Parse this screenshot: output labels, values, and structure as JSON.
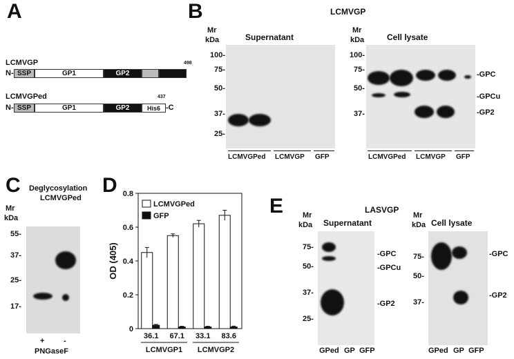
{
  "panels": {
    "a": {
      "letter": "A",
      "construct1": {
        "name": "LCMVGP",
        "n": "N-",
        "ssp": "SSP",
        "gp1": "GP1",
        "gp2": "GP2",
        "end": "498"
      },
      "construct2": {
        "name": "LCMVGPed",
        "n": "N-",
        "ssp": "SSP",
        "gp1": "GP1",
        "gp2": "GP2",
        "his": "His6",
        "c": "-C",
        "end": "437"
      }
    },
    "b": {
      "letter": "B",
      "title": "LCMVGP",
      "mr": "Mr",
      "kda": "kDa",
      "sup_title": "Supernatant",
      "lys_title": "Cell lysate",
      "markers": [
        "100-",
        "75-",
        "50-",
        "37-",
        "25-"
      ],
      "lys_markers": [
        "100-",
        "75-",
        "50-",
        "37-"
      ],
      "lanes": [
        "LCMVGPed",
        "LCMVGP",
        "GFP"
      ],
      "right_labels": [
        "-GPC",
        "-GPCu",
        "-GP2"
      ]
    },
    "c": {
      "letter": "C",
      "title1": "Deglycosylation",
      "title2": "LCMVGPed",
      "mr": "Mr",
      "kda": "kDa",
      "markers": [
        "55-",
        "37-",
        "25-",
        "17-"
      ],
      "lane_plus": "+",
      "lane_minus": "-",
      "enzyme": "PNGaseF"
    },
    "d": {
      "letter": "D"
    },
    "e": {
      "letter": "E",
      "title": "LASVGP",
      "mr": "Mr",
      "kda": "kDa",
      "sup_title": "Supernatant",
      "lys_title": "Cell lysate",
      "sup_markers": [
        "75-",
        "50-",
        "37-",
        "25-"
      ],
      "lys_markers": [
        "75-",
        "50-",
        "37-"
      ],
      "lanes": [
        "GPed",
        "GP",
        "GFP"
      ],
      "sup_right": [
        "-GPC",
        "-GPCu",
        "-GP2"
      ],
      "lys_right": [
        "-GPC",
        "-GP2"
      ]
    }
  },
  "chart_data": {
    "type": "bar",
    "ylabel": "OD (405)",
    "ylim": [
      0,
      0.8
    ],
    "yticks": [
      "0",
      "0.2",
      "0.4",
      "0.6",
      "0.8"
    ],
    "categories": [
      "36.1",
      "67.1",
      "33.1",
      "83.6"
    ],
    "groups": [
      "LCMVGP1",
      "LCMVGP2"
    ],
    "series": [
      {
        "name": "LCMVGPed",
        "values": [
          0.45,
          0.55,
          0.62,
          0.67
        ],
        "errors": [
          0.03,
          0.01,
          0.02,
          0.03
        ],
        "color": "#ffffff"
      },
      {
        "name": "GFP",
        "values": [
          0.02,
          0.01,
          0.01,
          0.01
        ],
        "errors": [
          0.005,
          0.004,
          0.004,
          0.005
        ],
        "color": "#111111"
      }
    ],
    "legend_position": "top-left"
  }
}
